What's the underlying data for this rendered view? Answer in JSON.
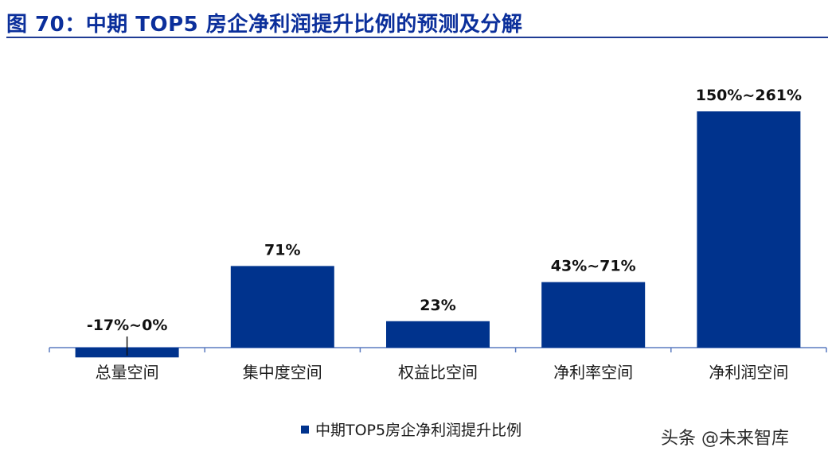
{
  "title": "图 70：中期 TOP5 房企净利润提升比例的预测及分解",
  "watermark": "头条 @未来智库",
  "colors": {
    "bar": "#00338d",
    "axis": "#5b7bc0",
    "title": "#0b2f9b"
  },
  "chart_data": {
    "type": "bar",
    "categories": [
      "总量空间",
      "集中度空间",
      "权益比空间",
      "净利率空间",
      "净利润空间"
    ],
    "series": [
      {
        "name": "中期TOP5房企净利润提升比例",
        "values": [
          -0.085,
          0.71,
          0.23,
          0.57,
          2.055
        ],
        "ranges": [
          [
            -0.17,
            0
          ],
          [
            0.71,
            0.71
          ],
          [
            0.23,
            0.23
          ],
          [
            0.43,
            0.71
          ],
          [
            1.5,
            2.61
          ]
        ],
        "labels": [
          "-17%~0%",
          "71%",
          "23%",
          "43%~71%",
          "150%~261%"
        ]
      }
    ],
    "ylim": [
      -0.1,
      2.7
    ],
    "grid": false,
    "legend": "bottom-center"
  }
}
